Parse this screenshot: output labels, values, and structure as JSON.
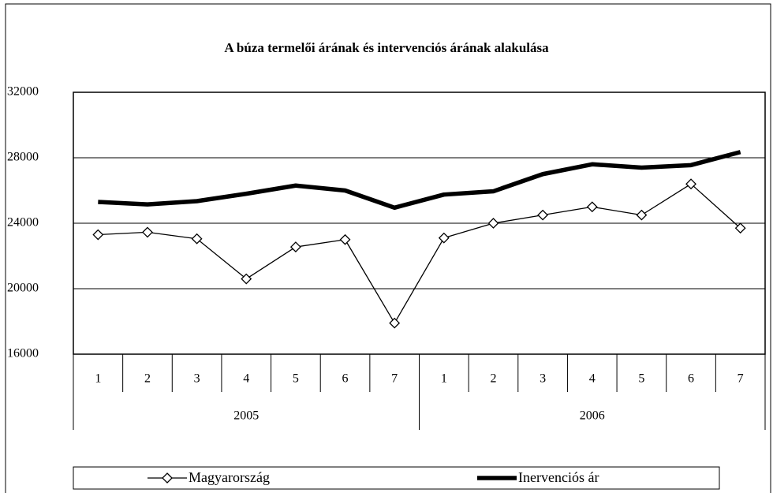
{
  "chart_data": {
    "type": "line",
    "title": "A búza termelői árának és intervenciós árának alakulása",
    "categories": [
      "1",
      "2",
      "3",
      "4",
      "5",
      "6",
      "7",
      "1",
      "2",
      "3",
      "4",
      "5",
      "6",
      "7"
    ],
    "groups": [
      "2005",
      "2006"
    ],
    "series": [
      {
        "name": "Magyarország",
        "color": "#000000",
        "marker": "diamond",
        "values": [
          23300,
          23450,
          23050,
          20600,
          22550,
          23000,
          17900,
          23100,
          24000,
          24500,
          25000,
          24500,
          26400,
          23700
        ]
      },
      {
        "name": "Inervenciós ár",
        "color": "#000000",
        "marker": "none",
        "values": [
          25300,
          25150,
          25350,
          25800,
          26300,
          26000,
          24950,
          25750,
          25950,
          27000,
          27600,
          27400,
          27550,
          28350
        ]
      }
    ],
    "ylim": [
      16000,
      32000
    ],
    "yticks": [
      16000,
      20000,
      24000,
      28000,
      32000
    ],
    "grid": true,
    "legend": "bottom"
  }
}
